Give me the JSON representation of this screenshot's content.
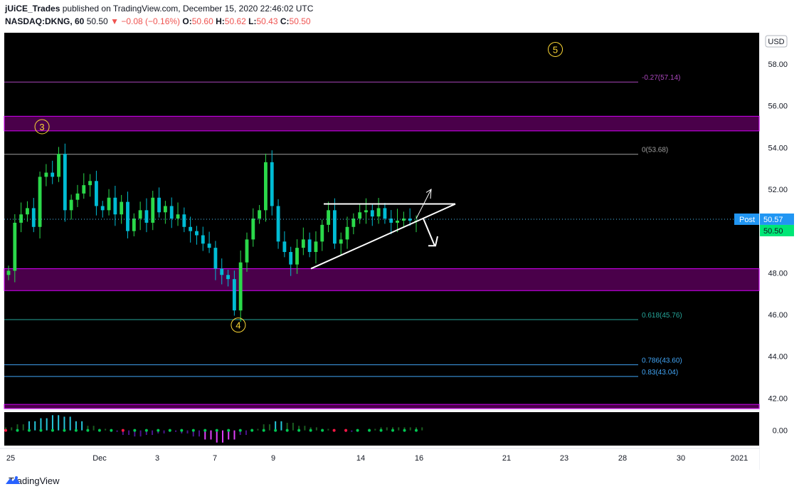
{
  "header": {
    "publisher": "jUiCE_Trades",
    "published_text": "published on TradingView.com, December 15, 2020 22:46:02 UTC",
    "symbol": "NASDAQ:DKNG, 60",
    "last": "50.50",
    "change": "−0.08 (−0.16%)",
    "o_label": "O:",
    "o_val": "50.60",
    "h_label": "H:",
    "h_val": "50.62",
    "l_label": "L:",
    "l_val": "50.43",
    "c_label": "C:",
    "c_val": "50.50"
  },
  "colors": {
    "background": "#000000",
    "up": "#00e676",
    "down": "#26a69a",
    "candle_up": "#2bd94a",
    "candle_down": "#00bcd4",
    "zone": "#4a004a",
    "zone_border": "#d500f9",
    "fib_purple": "#ab47bc",
    "fib_teal": "#26a69a",
    "fib_blue": "#42a5f5",
    "wave_label": "#fdd835"
  },
  "footer": {
    "logo": "TradingView",
    "logo_icon": "tradingview-icon"
  },
  "chart_data": {
    "type": "candlestick",
    "currency": "USD",
    "ylim": [
      41.5,
      59.5
    ],
    "y_ticks": [
      "58.00",
      "56.00",
      "54.00",
      "52.00",
      "50.00",
      "48.00",
      "46.00",
      "44.00",
      "42.00"
    ],
    "x_ticks": [
      "25",
      "Dec",
      "3",
      "7",
      "9",
      "14",
      "16",
      "21",
      "23",
      "28",
      "30",
      "2021"
    ],
    "post_label": "Post",
    "post_price": "50.57",
    "last_price": "50.50",
    "zones": [
      {
        "from": 54.8,
        "to": 55.5
      },
      {
        "from": 47.15,
        "to": 48.2
      },
      {
        "from": 41.5,
        "to": 41.7
      }
    ],
    "fib_levels": [
      {
        "label": "-0.27(57.14)",
        "value": 57.14,
        "color": "#ab47bc"
      },
      {
        "label": "0(53.68)",
        "value": 53.68,
        "color": "#9e9e9e"
      },
      {
        "label": "0.618(45.76)",
        "value": 45.76,
        "color": "#26a69a"
      },
      {
        "label": "0.786(43.60)",
        "value": 43.6,
        "color": "#42a5f5"
      },
      {
        "label": "0.83(43.04)",
        "value": 43.04,
        "color": "#42a5f5"
      }
    ],
    "wave_labels": [
      {
        "label": "3",
        "value": 55.0,
        "x": 0.05
      },
      {
        "label": "4",
        "value": 45.5,
        "x": 0.31
      },
      {
        "label": "5",
        "value": 58.7,
        "x": 0.73
      }
    ],
    "close_path": [
      48.1,
      50.4,
      50.8,
      51.1,
      50.2,
      52.6,
      52.8,
      52.6,
      53.7,
      51.0,
      51.5,
      51.8,
      52.2,
      52.4,
      51.2,
      51.0,
      51.6,
      50.8,
      51.4,
      50.0,
      50.6,
      51.0,
      50.4,
      51.6,
      50.9,
      51.2,
      50.6,
      50.8,
      50.2,
      50.0,
      49.8,
      49.4,
      49.2,
      48.2,
      47.9,
      47.7,
      46.2,
      48.5,
      49.6,
      50.6,
      51.0,
      53.3,
      51.2,
      49.5,
      49.0,
      48.4,
      49.2,
      49.6,
      49.0,
      49.5,
      50.3,
      51.0,
      49.4,
      49.6,
      50.2,
      50.6,
      50.9,
      51.0,
      50.7,
      51.1,
      50.6,
      50.4,
      50.5,
      50.6,
      50.5,
      50.5
    ],
    "indicator": {
      "zero_label": "0.00",
      "values": [
        0.2,
        0.4,
        0.6,
        0.8,
        1.0,
        0.9,
        0.6,
        0.3,
        0.1,
        -0.1,
        -0.3,
        -0.4,
        -0.3,
        -0.2,
        -0.1,
        -0.2,
        -0.4,
        -0.6,
        -0.8,
        -0.6,
        -0.3,
        0.1,
        0.4,
        0.6,
        0.5,
        0.3,
        0.2,
        0.1,
        0.0,
        -0.1,
        0.0,
        0.1,
        0.2,
        0.2,
        0.2,
        0.2
      ],
      "ylim": [
        -1.0,
        1.2
      ]
    }
  }
}
